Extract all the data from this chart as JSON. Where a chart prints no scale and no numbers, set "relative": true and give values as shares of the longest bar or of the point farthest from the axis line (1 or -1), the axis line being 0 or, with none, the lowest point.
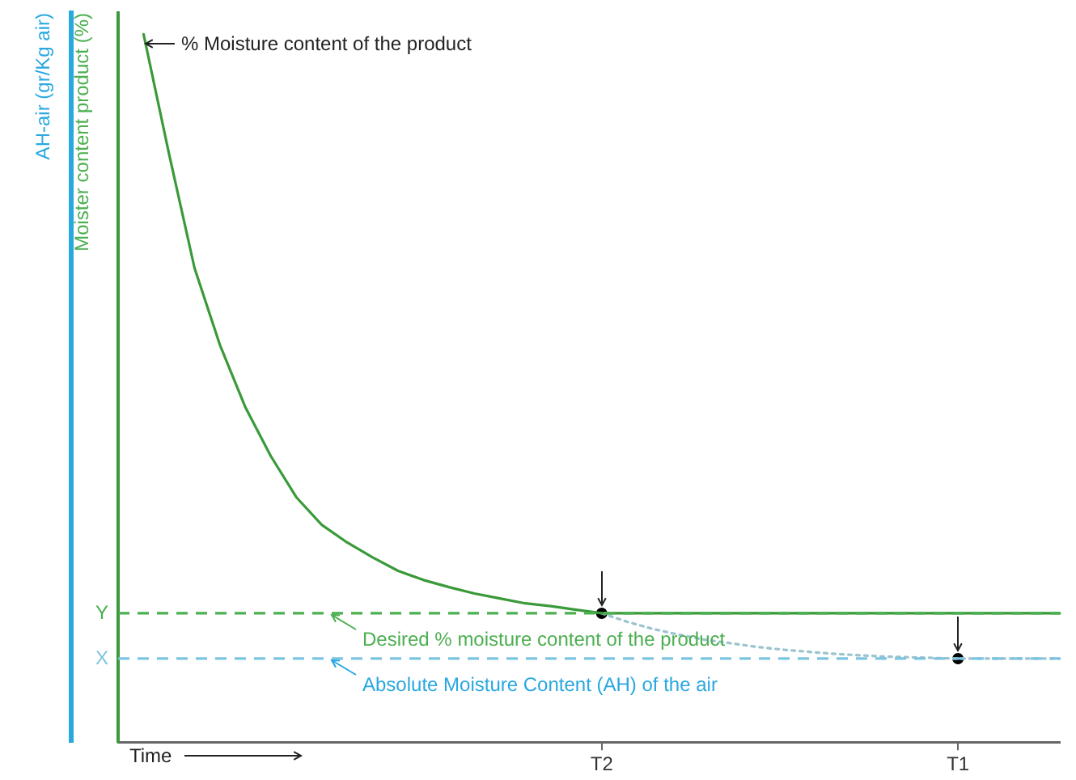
{
  "chart_data": {
    "type": "line",
    "relative": true,
    "xlabel": "Time",
    "ylabel": "Moister content product (%)",
    "y2label": "AH-air (gr/Kg air)",
    "categories": [
      null,
      null,
      null,
      null,
      null,
      null,
      null,
      null,
      null,
      null,
      null,
      null,
      null,
      null,
      null,
      null,
      null,
      null,
      null,
      "T2",
      null,
      null,
      null,
      null,
      null,
      null,
      null,
      null,
      null,
      null,
      null,
      null,
      null,
      "T1",
      null,
      null,
      null,
      null
    ],
    "series": [
      {
        "color": "#3a9a3a",
        "values": [
          null,
          1,
          0.831,
          0.67,
          0.561,
          0.473,
          0.404,
          0.346,
          0.307,
          0.282,
          0.261,
          0.242,
          0.229,
          0.219,
          0.21,
          0.203,
          0.196,
          0.192,
          0.187,
          0.182,
          0.182,
          0.182,
          0.182,
          0.182,
          0.182,
          0.182,
          0.182,
          0.182,
          0.182,
          0.182,
          0.182,
          0.182,
          0.182,
          0.182,
          0.182,
          0.182,
          0.182,
          0.182
        ]
      },
      {
        "color": "#9cc3cf",
        "line_style": "dotted",
        "values": [
          null,
          null,
          null,
          null,
          null,
          null,
          null,
          null,
          null,
          null,
          null,
          null,
          null,
          null,
          null,
          null,
          null,
          null,
          null,
          0.182,
          0.17,
          0.16,
          0.152,
          0.145,
          0.14,
          0.135,
          0.131,
          0.128,
          0.125,
          0.123,
          0.121,
          0.12,
          0.119,
          0.118,
          0.118,
          0.118,
          0.118,
          0.118
        ]
      },
      {
        "type": "scatter",
        "color": "#000000",
        "marker": "circle",
        "x": [
          "T2",
          "T1"
        ],
        "values": [
          0.182,
          0.118
        ]
      }
    ],
    "ref_lines": [
      {
        "axis": "y",
        "value": 0.182,
        "label": "Y",
        "color": "#4caf50",
        "line_style": "dashed"
      },
      {
        "axis": "y",
        "value": 0.118,
        "label": "X",
        "color": "#7cc4e0",
        "line_style": "dashed"
      }
    ],
    "annotations": [
      "% Moisture content of the product",
      "Desired % moisture content of the product",
      "Absolute Moisture Content (AH) of the air"
    ],
    "legend": false,
    "marker": "none",
    "line_style": "solid",
    "grid": false
  }
}
